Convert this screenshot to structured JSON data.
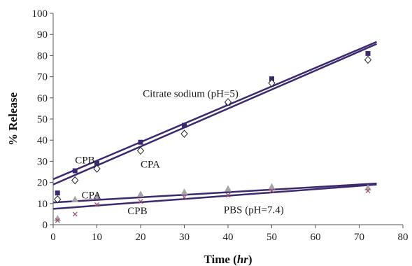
{
  "chart_data": {
    "type": "scatter",
    "xlabel_main": "Time (",
    "xlabel_unit": "hr",
    "xlabel_close": ")",
    "ylabel": "% Release",
    "xlim": [
      0,
      80
    ],
    "ylim": [
      0,
      100
    ],
    "x_ticks": [
      "0",
      "10",
      "20",
      "30",
      "40",
      "50",
      "60",
      "70",
      "80"
    ],
    "y_ticks": [
      "0",
      "10",
      "20",
      "30",
      "40",
      "50",
      "60",
      "70",
      "80",
      "90",
      "100"
    ],
    "grid": false,
    "line_color": "#3d2a6e",
    "series": [
      {
        "marker": "square",
        "color": "#3d2a6e",
        "points": [
          [
            1,
            15
          ],
          [
            5,
            25.5
          ],
          [
            10,
            29
          ],
          [
            20,
            39
          ],
          [
            30,
            47
          ],
          [
            40,
            57.5
          ],
          [
            50,
            69
          ],
          [
            72,
            81
          ]
        ]
      },
      {
        "marker": "diamond",
        "color": "#3d2a6e",
        "points": [
          [
            1,
            12
          ],
          [
            5,
            21
          ],
          [
            10,
            26.5
          ],
          [
            20,
            35
          ],
          [
            30,
            43
          ],
          [
            40,
            58
          ],
          [
            50,
            67
          ],
          [
            72,
            78
          ]
        ]
      },
      {
        "marker": "triangle",
        "color": "#a6a6a6",
        "points": [
          [
            1,
            3
          ],
          [
            5,
            12
          ],
          [
            10,
            13.5
          ],
          [
            20,
            14.5
          ],
          [
            30,
            15.5
          ],
          [
            40,
            17
          ],
          [
            50,
            18
          ],
          [
            72,
            17.5
          ]
        ]
      },
      {
        "marker": "x",
        "color": "#9b4f6b",
        "points": [
          [
            1,
            2
          ],
          [
            5,
            5
          ],
          [
            10,
            9.5
          ],
          [
            20,
            11
          ],
          [
            30,
            13
          ],
          [
            40,
            14
          ],
          [
            50,
            16
          ],
          [
            72,
            16
          ]
        ]
      }
    ],
    "trendlines": [
      {
        "from": [
          0,
          21.5
        ],
        "to": [
          74,
          86.5
        ]
      },
      {
        "from": [
          0,
          19
        ],
        "to": [
          74,
          85.5
        ]
      },
      {
        "from": [
          0,
          10.5
        ],
        "to": [
          74,
          19.5
        ]
      },
      {
        "from": [
          0,
          7.5
        ],
        "to": [
          74,
          19
        ]
      }
    ],
    "annotations": [
      {
        "text": "Citrate sodium (pH=5)",
        "x": 20.5,
        "y": 60.5
      },
      {
        "text": "CPB",
        "x": 5,
        "y": 29
      },
      {
        "text": "CPA",
        "x": 20,
        "y": 27
      },
      {
        "text": "CPA",
        "x": 6.5,
        "y": 12.5
      },
      {
        "text": "CPB",
        "x": 17,
        "y": 5
      },
      {
        "text": "PBS (pH=7.4)",
        "x": 39,
        "y": 5.5
      }
    ]
  }
}
